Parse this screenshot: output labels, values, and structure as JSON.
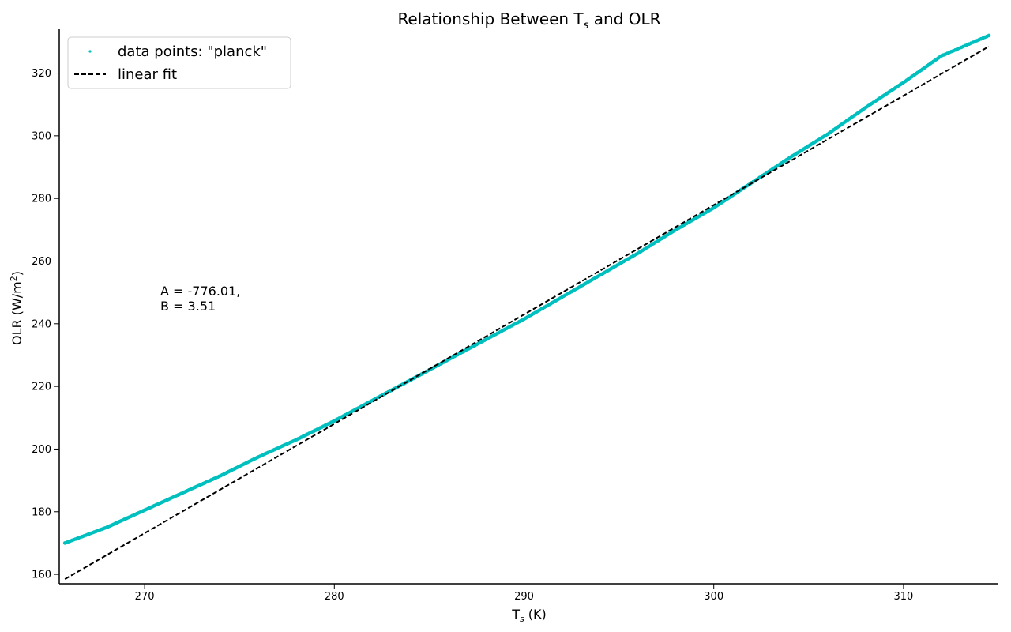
{
  "chart_data": {
    "type": "scatter",
    "title": {
      "main": "Relationship Between T",
      "sub": "s",
      "rest": " and OLR"
    },
    "xlabel": {
      "main": "T",
      "sub": "s",
      "rest": " (K)"
    },
    "ylabel": {
      "main": "OLR (W/m",
      "sup": "2",
      "rest": ")"
    },
    "xlim": [
      265.5,
      315
    ],
    "ylim": [
      157,
      334
    ],
    "xticks": [
      270,
      280,
      290,
      300,
      310
    ],
    "yticks": [
      160,
      180,
      200,
      220,
      240,
      260,
      280,
      300,
      320
    ],
    "series": [
      {
        "name": "data points: \"planck\"",
        "kind": "points",
        "color": "#00bfbf",
        "x": [
          265.8,
          268,
          270,
          272,
          274,
          276,
          278,
          280,
          282,
          284,
          286,
          288,
          290,
          292,
          294,
          296,
          298,
          300,
          302,
          304,
          306,
          308,
          310,
          312,
          314.5
        ],
        "y": [
          170,
          175,
          180.5,
          186,
          191.5,
          197.5,
          203,
          209,
          215.5,
          222,
          228.5,
          235,
          241.5,
          248.5,
          255.5,
          262.5,
          270,
          277,
          285,
          293,
          300.5,
          309,
          317,
          325.5,
          332
        ]
      },
      {
        "name": "linear fit",
        "kind": "dashed-line",
        "color": "#000000",
        "x": [
          265.8,
          314.5
        ],
        "y": [
          158.5,
          328.5
        ]
      }
    ],
    "legend_position": "top-left",
    "annotation": [
      "A = -776.01,",
      "B = 3.51"
    ]
  }
}
